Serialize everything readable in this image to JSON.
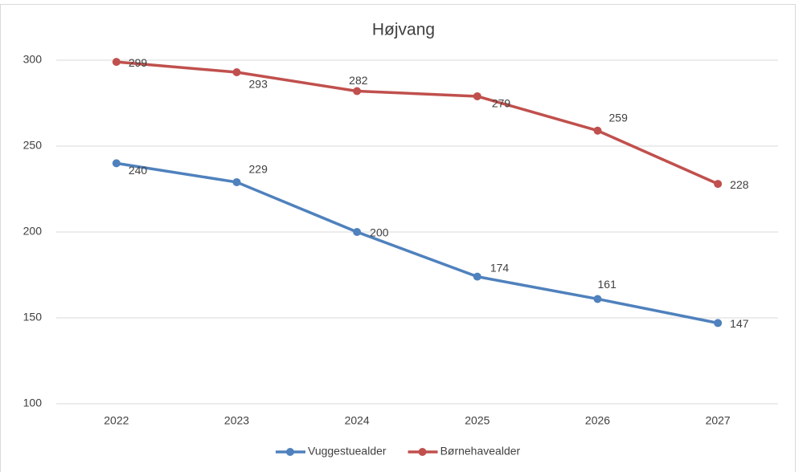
{
  "chart_data": {
    "type": "line",
    "title": "Højvang",
    "categories": [
      "2022",
      "2023",
      "2024",
      "2025",
      "2026",
      "2027"
    ],
    "series": [
      {
        "name": "Vuggestuealder",
        "color": "#4f81bd",
        "values": [
          240,
          229,
          200,
          174,
          161,
          147
        ]
      },
      {
        "name": "Børnehavealder",
        "color": "#c0504d",
        "values": [
          299,
          293,
          282,
          279,
          259,
          228
        ]
      }
    ],
    "ylim": [
      100,
      300
    ],
    "yticks": [
      100,
      150,
      200,
      250,
      300
    ],
    "grid": true,
    "legend": "bottom"
  }
}
